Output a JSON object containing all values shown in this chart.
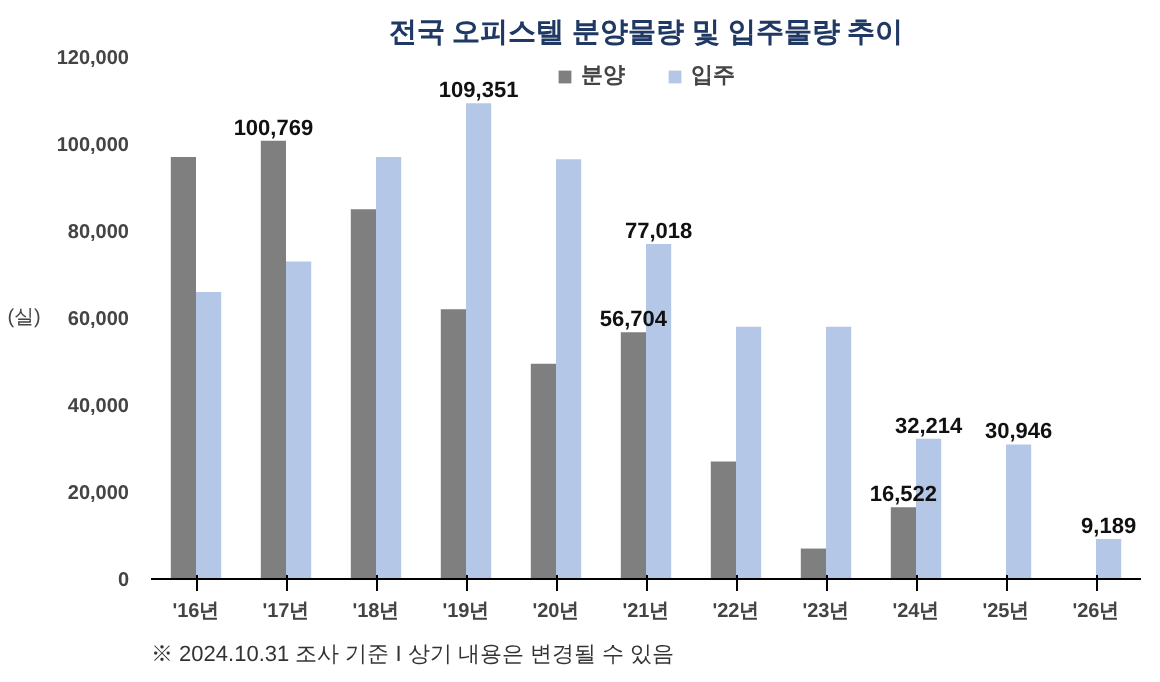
{
  "chart_data": {
    "type": "bar",
    "title": "전국 오피스텔 분양물량 및 입주물량 추이",
    "ylabel": "(실)",
    "categories": [
      "'16년",
      "'17년",
      "'18년",
      "'19년",
      "'20년",
      "'21년",
      "'22년",
      "'23년",
      "'24년",
      "'25년",
      "'26년"
    ],
    "series": [
      {
        "name": "분양",
        "color": "#7f7f7f",
        "values": [
          97000,
          100769,
          85000,
          62000,
          49500,
          56704,
          27000,
          7000,
          16522,
          null,
          null
        ],
        "value_labels": [
          null,
          "100,769",
          null,
          null,
          null,
          "56,704",
          null,
          null,
          "16,522",
          null,
          null
        ]
      },
      {
        "name": "입주",
        "color": "#b4c7e7",
        "values": [
          66000,
          73000,
          97000,
          109351,
          96500,
          77018,
          58000,
          58000,
          32214,
          30946,
          9189
        ],
        "value_labels": [
          null,
          null,
          null,
          "109,351",
          null,
          "77,018",
          null,
          null,
          "32,214",
          "30,946",
          "9,189"
        ]
      }
    ],
    "ylim": [
      0,
      120000
    ],
    "yticks": [
      {
        "value": 0,
        "label": "0"
      },
      {
        "value": 20000,
        "label": "20,000"
      },
      {
        "value": 40000,
        "label": "40,000"
      },
      {
        "value": 60000,
        "label": "60,000"
      },
      {
        "value": 80000,
        "label": "80,000"
      },
      {
        "value": 100000,
        "label": "100,000"
      },
      {
        "value": 120000,
        "label": "120,000"
      }
    ],
    "grid": false,
    "legend": "top",
    "annotations": [
      "※ 2024.10.31 조사 기준 I 상기 내용은 변경될 수 있음"
    ]
  }
}
